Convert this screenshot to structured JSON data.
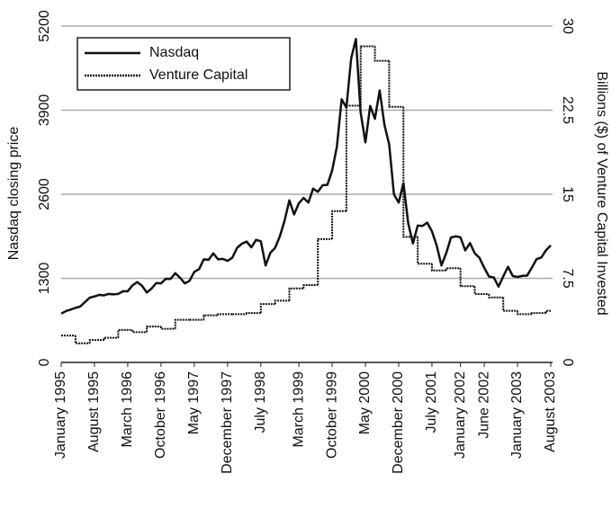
{
  "chart_data": {
    "type": "line",
    "y_label": "Nasdaq closing price",
    "y2_label": "Billions ($) of Venture Capital Invested",
    "x": [
      "January 1995",
      "February 1995",
      "March 1995",
      "April 1995",
      "May 1995",
      "June 1995",
      "July 1995",
      "August 1995",
      "September 1995",
      "October 1995",
      "November 1995",
      "December 1995",
      "January 1996",
      "February 1996",
      "March 1996",
      "April 1996",
      "May 1996",
      "June 1996",
      "July 1996",
      "August 1996",
      "September 1996",
      "October 1996",
      "November 1996",
      "December 1996",
      "January 1997",
      "February 1997",
      "March 1997",
      "April 1997",
      "May 1997",
      "June 1997",
      "July 1997",
      "August 1997",
      "September 1997",
      "October 1997",
      "November 1997",
      "December 1997",
      "January 1998",
      "February 1998",
      "March 1998",
      "April 1998",
      "May 1998",
      "June 1998",
      "July 1998",
      "August 1998",
      "September 1998",
      "October 1998",
      "November 1998",
      "December 1998",
      "January 1999",
      "February 1999",
      "March 1999",
      "April 1999",
      "May 1999",
      "June 1999",
      "July 1999",
      "August 1999",
      "September 1999",
      "October 1999",
      "November 1999",
      "December 1999",
      "January 2000",
      "February 2000",
      "March 2000",
      "April 2000",
      "May 2000",
      "June 2000",
      "July 2000",
      "August 2000",
      "September 2000",
      "October 2000",
      "November 2000",
      "December 2000",
      "January 2001",
      "February 2001",
      "March 2001",
      "April 2001",
      "May 2001",
      "June 2001",
      "July 2001",
      "August 2001",
      "September 2001",
      "October 2001",
      "November 2001",
      "December 2001",
      "January 2002",
      "February 2002",
      "March 2002",
      "April 2002",
      "May 2002",
      "June 2002",
      "July 2002",
      "August 2002",
      "September 2002",
      "October 2002",
      "November 2002",
      "December 2002",
      "January 2003",
      "February 2003",
      "March 2003",
      "April 2003",
      "May 2003",
      "June 2003",
      "July 2003",
      "August 2003"
    ],
    "xticks": [
      "January 1995",
      "August 1995",
      "March 1996",
      "October 1996",
      "May 1997",
      "December 1997",
      "July 1998",
      "March 1999",
      "October 1999",
      "May 2000",
      "December 2000",
      "July 2001",
      "January 2002",
      "June 2002",
      "January 2003",
      "August 2003"
    ],
    "series": [
      {
        "name": "Nasdaq",
        "color": "#111111",
        "style": "solid",
        "values": [
          755,
          793,
          817,
          843,
          865,
          933,
          1001,
          1020,
          1044,
          1036,
          1059,
          1052,
          1059,
          1100,
          1101,
          1191,
          1243,
          1185,
          1081,
          1141,
          1227,
          1222,
          1293,
          1291,
          1380,
          1309,
          1222,
          1261,
          1400,
          1442,
          1594,
          1587,
          1686,
          1594,
          1601,
          1570,
          1619,
          1771,
          1835,
          1869,
          1779,
          1895,
          1872,
          1499,
          1694,
          1771,
          1950,
          2193,
          2505,
          2288,
          2461,
          2543,
          2471,
          2686,
          2638,
          2739,
          2746,
          2966,
          3336,
          4069,
          3940,
          4700,
          5000,
          3861,
          3401,
          3966,
          3767,
          4206,
          3673,
          3370,
          2598,
          2471,
          2773,
          2152,
          1840,
          2116,
          2110,
          2161,
          2027,
          1805,
          1499,
          1690,
          1931,
          1950,
          1934,
          1731,
          1845,
          1688,
          1616,
          1463,
          1328,
          1315,
          1172,
          1330,
          1479,
          1336,
          1321,
          1338,
          1341,
          1464,
          1596,
          1623,
          1735,
          1810
        ]
      },
      {
        "name": "Venture Capital",
        "color": "#111111",
        "style": "dotted",
        "axis": "y2",
        "step": true,
        "x": [
          "January 1995",
          "April 1995",
          "July 1995",
          "October 1995",
          "January 1996",
          "April 1996",
          "July 1996",
          "October 1996",
          "January 1997",
          "April 1997",
          "July 1997",
          "October 1997",
          "January 1998",
          "April 1998",
          "July 1998",
          "October 1998",
          "January 1999",
          "April 1999",
          "July 1999",
          "October 1999",
          "January 2000",
          "April 2000",
          "July 2000",
          "October 2000",
          "January 2001",
          "April 2001",
          "July 2001",
          "October 2001",
          "January 2002",
          "April 2002",
          "July 2002",
          "October 2002",
          "January 2003",
          "April 2003",
          "July 2003"
        ],
        "values": [
          2.4,
          1.7,
          2.0,
          2.2,
          2.9,
          2.7,
          3.2,
          3.0,
          3.8,
          3.8,
          4.2,
          4.3,
          4.3,
          4.4,
          5.2,
          5.5,
          6.6,
          6.9,
          11.0,
          13.5,
          22.9,
          28.2,
          26.9,
          22.8,
          11.2,
          8.8,
          8.2,
          8.4,
          6.8,
          6.1,
          5.8,
          4.6,
          4.3,
          4.4,
          4.6
        ]
      }
    ],
    "ylim": [
      0,
      5200
    ],
    "yticks": [
      0,
      1300,
      2600,
      3900,
      5200
    ],
    "y2lim": [
      0,
      30
    ],
    "y2ticks": [
      0,
      7.5,
      15,
      22.5,
      30
    ],
    "grid": true,
    "legend": "upper left"
  }
}
